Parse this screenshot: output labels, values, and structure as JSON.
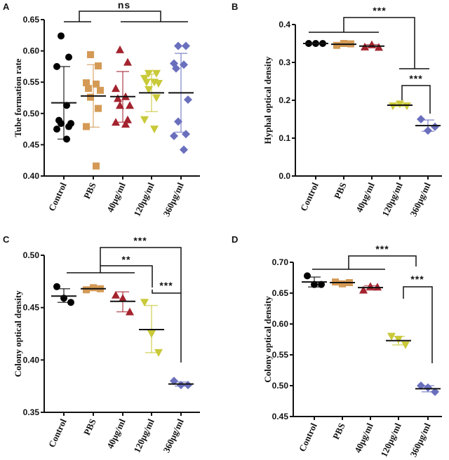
{
  "chart_data": [
    {
      "panel": "A",
      "type": "scatter",
      "ylabel": "Tube formation rate",
      "ylim": [
        0.4,
        0.65
      ],
      "yticks": [
        "0.40",
        "0.45",
        "0.50",
        "0.55",
        "0.60",
        "0.65"
      ],
      "categories": [
        "Control",
        "PBS",
        "40μg/ml",
        "120μg/ml",
        "360μg/ml"
      ],
      "groups": [
        {
          "points": [
            0.624,
            0.59,
            0.575,
            0.513,
            0.489,
            0.484,
            0.484,
            0.479,
            0.475,
            0.459
          ],
          "mean": 0.517,
          "sd": [
            0.459,
            0.575
          ]
        },
        {
          "points": [
            0.594,
            0.576,
            0.549,
            0.547,
            0.54,
            0.537,
            0.526,
            0.508,
            0.479,
            0.416
          ],
          "mean": 0.528,
          "sd": [
            0.478,
            0.578
          ]
        },
        {
          "points": [
            0.602,
            0.582,
            0.54,
            0.527,
            0.524,
            0.513,
            0.513,
            0.49,
            0.486,
            0.483
          ],
          "mean": 0.527,
          "sd": [
            0.486,
            0.567
          ]
        },
        {
          "points": [
            0.564,
            0.564,
            0.556,
            0.55,
            0.55,
            0.548,
            0.538,
            0.525,
            0.49,
            0.475
          ],
          "mean": 0.533,
          "sd": [
            0.503,
            0.563
          ]
        },
        {
          "points": [
            0.608,
            0.608,
            0.58,
            0.578,
            0.572,
            0.522,
            0.487,
            0.467,
            0.464,
            0.442
          ],
          "mean": 0.533,
          "sd": [
            0.47,
            0.596
          ]
        }
      ],
      "significance": [
        {
          "label": "ns",
          "compare": [
            [
              "Control",
              "PBS"
            ],
            [
              "40μg/ml",
              "120μg/ml",
              "360μg/ml"
            ]
          ]
        }
      ]
    },
    {
      "panel": "B",
      "type": "scatter",
      "ylabel": "Hyphal optical density",
      "ylim": [
        0.0,
        0.4
      ],
      "yticks": [
        "0.0",
        "0.1",
        "0.2",
        "0.3",
        "0.4"
      ],
      "categories": [
        "Control",
        "PBS",
        "40μg/ml",
        "120μg/ml",
        "360μg/ml"
      ],
      "groups": [
        {
          "points": [
            0.35,
            0.35,
            0.35
          ],
          "mean": 0.35,
          "sd": [
            0.349,
            0.351
          ]
        },
        {
          "points": [
            0.345,
            0.35,
            0.349
          ],
          "mean": 0.348,
          "sd": [
            0.345,
            0.351
          ]
        },
        {
          "points": [
            0.341,
            0.347,
            0.34
          ],
          "mean": 0.343,
          "sd": [
            0.339,
            0.347
          ]
        },
        {
          "points": [
            0.185,
            0.19,
            0.185
          ],
          "mean": 0.187,
          "sd": [
            0.184,
            0.19
          ]
        },
        {
          "points": [
            0.15,
            0.12,
            0.13
          ],
          "mean": 0.133,
          "sd": [
            0.118,
            0.148
          ]
        }
      ],
      "significance": [
        {
          "label": "***",
          "compare": [
            [
              "Control",
              "PBS",
              "40μg/ml"
            ],
            [
              "120μg/ml",
              "360μg/ml"
            ]
          ]
        },
        {
          "label": "***",
          "compare": [
            [
              "120μg/ml"
            ],
            [
              "360μg/ml"
            ]
          ]
        }
      ]
    },
    {
      "panel": "C",
      "type": "scatter",
      "ylabel": "Colony optical density",
      "ylim": [
        0.35,
        0.5
      ],
      "yticks": [
        "0.35",
        "0.40",
        "0.45",
        "0.50"
      ],
      "categories": [
        "Control",
        "PBS",
        "40μg/ml",
        "120μg/ml",
        "360μg/ml"
      ],
      "groups": [
        {
          "points": [
            0.47,
            0.459,
            0.455
          ],
          "mean": 0.461,
          "sd": [
            0.455,
            0.468
          ]
        },
        {
          "points": [
            0.467,
            0.469,
            0.468
          ],
          "mean": 0.468,
          "sd": [
            0.467,
            0.469
          ]
        },
        {
          "points": [
            0.462,
            0.459,
            0.446
          ],
          "mean": 0.456,
          "sd": [
            0.446,
            0.465
          ]
        },
        {
          "points": [
            0.455,
            0.425,
            0.407
          ],
          "mean": 0.429,
          "sd": [
            0.407,
            0.452
          ]
        },
        {
          "points": [
            0.38,
            0.376,
            0.376
          ],
          "mean": 0.377,
          "sd": [
            0.375,
            0.379
          ]
        }
      ],
      "significance": [
        {
          "label": "***",
          "compare": [
            [
              "Control",
              "PBS",
              "40μg/ml"
            ],
            [
              "360μg/ml"
            ]
          ]
        },
        {
          "label": "**",
          "compare": [
            [
              "Control",
              "PBS",
              "40μg/ml"
            ],
            [
              "120μg/ml"
            ]
          ]
        },
        {
          "label": "***",
          "compare": [
            [
              "120μg/ml"
            ],
            [
              "360μg/ml"
            ]
          ]
        }
      ]
    },
    {
      "panel": "D",
      "type": "scatter",
      "ylabel": "Colony optical density",
      "ylim": [
        0.45,
        0.7
      ],
      "yticks": [
        "0.45",
        "0.50",
        "0.55",
        "0.60",
        "0.65",
        "0.70"
      ],
      "categories": [
        "Control",
        "PBS",
        "40μg/ml",
        "120μg/ml",
        "360μg/ml"
      ],
      "groups": [
        {
          "points": [
            0.678,
            0.664,
            0.664
          ],
          "mean": 0.668,
          "sd": [
            0.66,
            0.676
          ]
        },
        {
          "points": [
            0.668,
            0.665,
            0.667
          ],
          "mean": 0.667,
          "sd": [
            0.665,
            0.669
          ]
        },
        {
          "points": [
            0.655,
            0.661,
            0.66
          ],
          "mean": 0.659,
          "sd": [
            0.655,
            0.662
          ]
        },
        {
          "points": [
            0.58,
            0.575,
            0.566
          ],
          "mean": 0.573,
          "sd": [
            0.566,
            0.58
          ]
        },
        {
          "points": [
            0.5,
            0.497,
            0.49
          ],
          "mean": 0.495,
          "sd": [
            0.49,
            0.5
          ]
        }
      ],
      "significance": [
        {
          "label": "***",
          "compare": [
            [
              "Control",
              "PBS",
              "40μg/ml"
            ],
            [
              "120μg/ml",
              "360μg/ml"
            ]
          ]
        },
        {
          "label": "***",
          "compare": [
            [
              "120μg/ml"
            ],
            [
              "360μg/ml"
            ]
          ]
        }
      ]
    }
  ],
  "style": {
    "group_colors": [
      "#000000",
      "#d49a55",
      "#a3232e",
      "#c9c93a",
      "#6a6fbd"
    ],
    "group_markers": [
      "circle",
      "square",
      "triangle-up",
      "triangle-down",
      "diamond"
    ]
  }
}
